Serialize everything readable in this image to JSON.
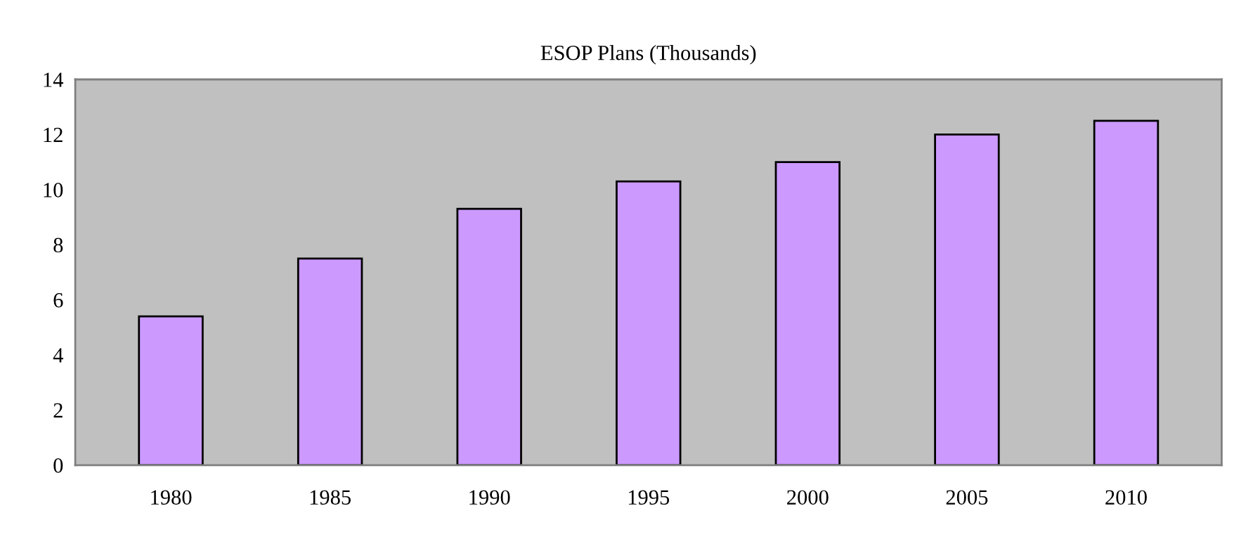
{
  "chart_data": {
    "type": "bar",
    "title": "ESOP Plans (Thousands)",
    "categories": [
      "1980",
      "1985",
      "1990",
      "1995",
      "2000",
      "2005",
      "2010"
    ],
    "values": [
      5.4,
      7.5,
      9.3,
      10.3,
      11.0,
      12.0,
      12.5
    ],
    "color": "#cc99ff",
    "ylim": [
      0,
      14
    ],
    "yticks": [
      0,
      2,
      4,
      6,
      8,
      10,
      12,
      14
    ],
    "grid": false,
    "legend": false
  }
}
